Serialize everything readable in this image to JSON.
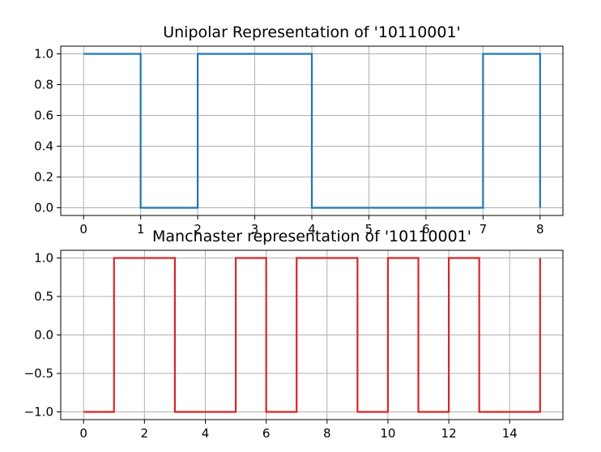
{
  "chart_data": [
    {
      "type": "line",
      "title": "Unipolar Representation of '10110001'",
      "xlim": [
        -0.4,
        8.4
      ],
      "ylim": [
        -0.05,
        1.05
      ],
      "xticks": [
        0,
        1,
        2,
        3,
        4,
        5,
        6,
        7,
        8
      ],
      "yticks": [
        0.0,
        0.2,
        0.4,
        0.6,
        0.8,
        1.0
      ],
      "xtick_labels": [
        "0",
        "1",
        "2",
        "3",
        "4",
        "5",
        "6",
        "7",
        "8"
      ],
      "ytick_labels": [
        "0.0",
        "0.2",
        "0.4",
        "0.6",
        "0.8",
        "1.0"
      ],
      "grid": true,
      "series": [
        {
          "color": "#1f77b4",
          "style": "step-post",
          "x": [
            0,
            1,
            2,
            3,
            4,
            5,
            6,
            7,
            8
          ],
          "y": [
            1,
            0,
            1,
            1,
            0,
            0,
            0,
            1,
            0
          ]
        }
      ]
    },
    {
      "type": "line",
      "title": "Manchaster representation of '10110001'",
      "xlim": [
        -0.75,
        15.75
      ],
      "ylim": [
        -1.1,
        1.1
      ],
      "xticks": [
        0,
        2,
        4,
        6,
        8,
        10,
        12,
        14
      ],
      "yticks": [
        -1.0,
        -0.5,
        0.0,
        0.5,
        1.0
      ],
      "xtick_labels": [
        "0",
        "2",
        "4",
        "6",
        "8",
        "10",
        "12",
        "14"
      ],
      "ytick_labels": [
        "−1.0",
        "−0.5",
        "0.0",
        "0.5",
        "1.0"
      ],
      "grid": true,
      "series": [
        {
          "color": "#d62728",
          "style": "step-post",
          "x": [
            0,
            1,
            2,
            3,
            4,
            5,
            6,
            7,
            8,
            9,
            10,
            11,
            12,
            13,
            14,
            15
          ],
          "y": [
            -1,
            1,
            1,
            -1,
            -1,
            1,
            -1,
            1,
            1,
            -1,
            1,
            -1,
            1,
            -1,
            -1,
            1
          ]
        }
      ]
    }
  ]
}
